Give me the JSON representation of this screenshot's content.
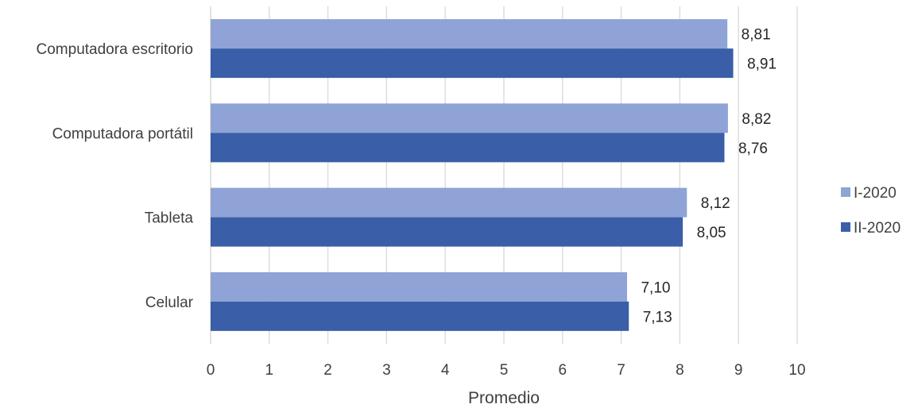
{
  "chart_data": {
    "type": "bar",
    "orientation": "horizontal",
    "categories": [
      "Computadora escritorio",
      "Computadora portátil",
      "Tableta",
      "Celular"
    ],
    "series": [
      {
        "name": "I-2020",
        "color": "#8FA3D6",
        "values": [
          8.81,
          8.82,
          8.12,
          7.1
        ],
        "labels": [
          "8,81",
          "8,82",
          "8,12",
          "7,10"
        ]
      },
      {
        "name": "II-2020",
        "color": "#3A5FA8",
        "values": [
          8.91,
          8.76,
          8.05,
          7.13
        ],
        "labels": [
          "8,91",
          "8,76",
          "8,05",
          "7,13"
        ]
      }
    ],
    "xlabel": "Promedio",
    "xlim": [
      0,
      10
    ],
    "xticks": [
      0,
      1,
      2,
      3,
      4,
      5,
      6,
      7,
      8,
      9,
      10
    ],
    "grid": "vertical",
    "legend": "right"
  }
}
